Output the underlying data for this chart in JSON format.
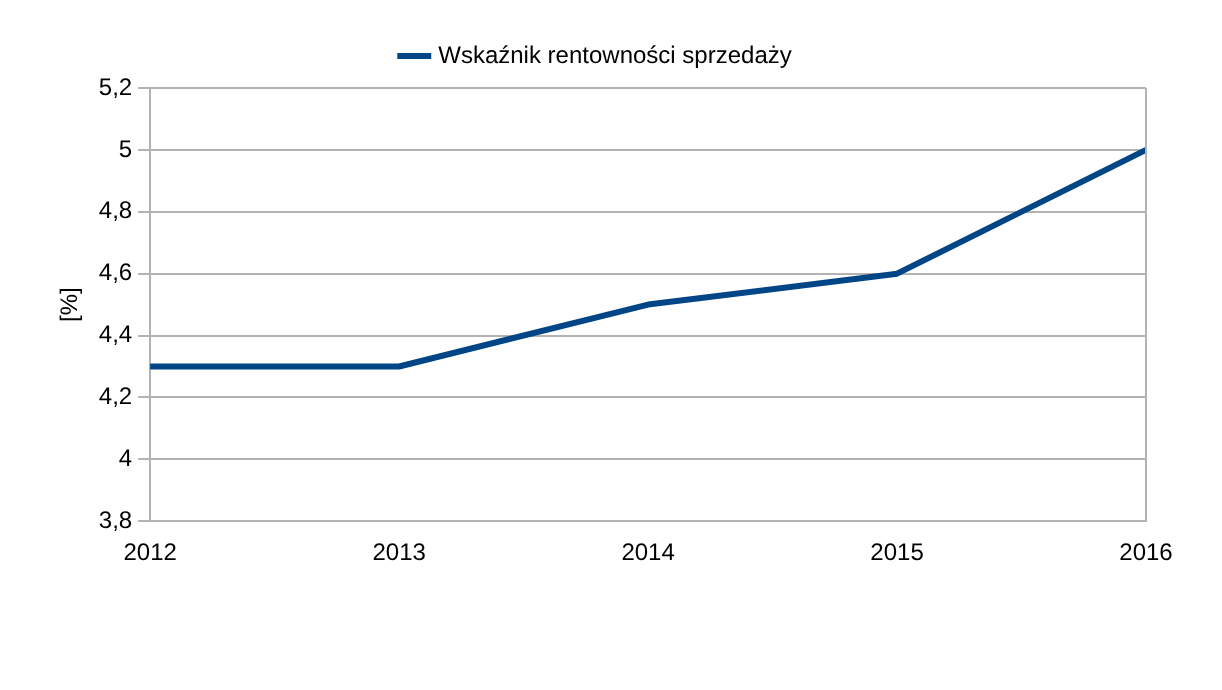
{
  "chart_data": {
    "type": "line",
    "categories": [
      "2012",
      "2013",
      "2014",
      "2015",
      "2016"
    ],
    "series": [
      {
        "name": "Wskaźnik rentowności sprzedaży",
        "color": "#004586",
        "values": [
          4.3,
          4.3,
          4.5,
          4.6,
          5.0
        ]
      }
    ],
    "ylabel": "[%]",
    "ylim": [
      3.8,
      5.2
    ],
    "yticks": [
      {
        "value": 3.8,
        "label": "3,8"
      },
      {
        "value": 4,
        "label": "4"
      },
      {
        "value": 4.2,
        "label": "4,2"
      },
      {
        "value": 4.4,
        "label": "4,4"
      },
      {
        "value": 4.6,
        "label": "4,6"
      },
      {
        "value": 4.8,
        "label": "4,8"
      },
      {
        "value": 5,
        "label": "5"
      },
      {
        "value": 5.2,
        "label": "5,2"
      }
    ],
    "grid": "y",
    "legend": "top",
    "marker": "none",
    "line_style": "solid"
  }
}
